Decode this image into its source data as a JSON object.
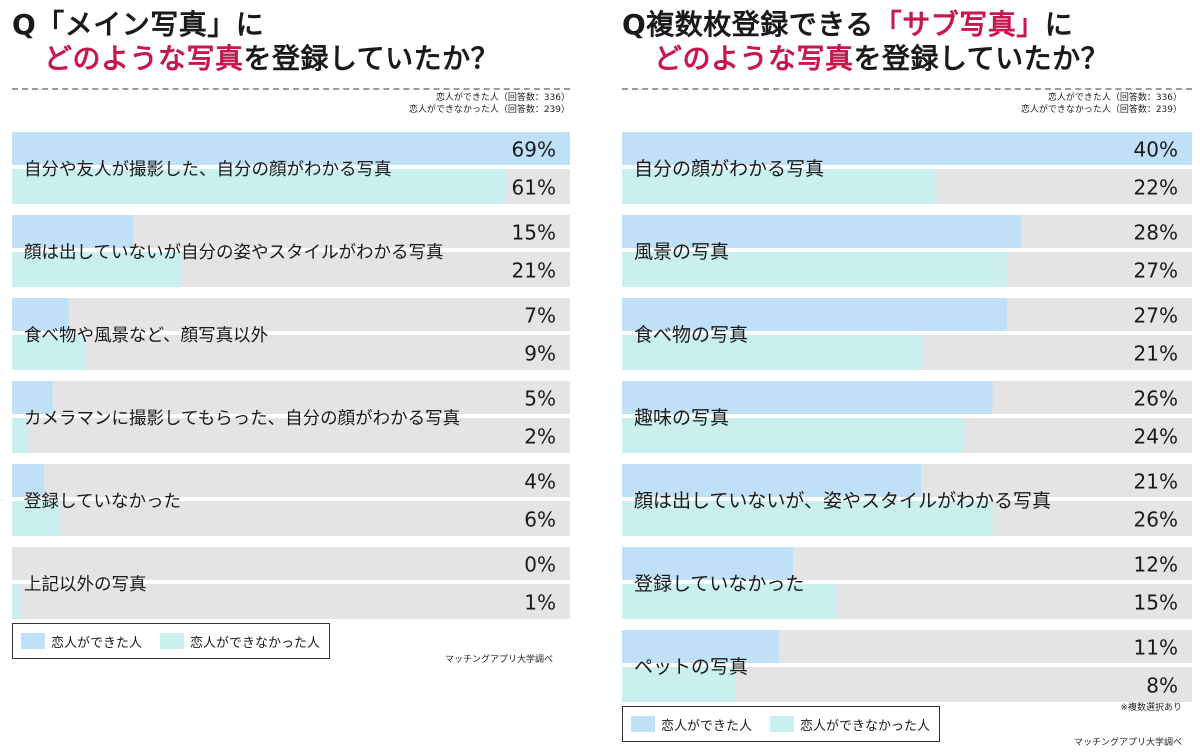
{
  "colors": {
    "series_a": "#bfe0f6",
    "series_b": "#c9efef",
    "track": "#e4e4e4",
    "highlight": "#c8174b"
  },
  "left": {
    "title_line1_prefix": "Q「メイン写真」に",
    "title_line2_highlight": "どのような写真",
    "title_line2_suffix": "を登録していたか？",
    "note_line1": "恋人ができた人（回答数：336）",
    "note_line2": "恋人ができなかった人（回答数：239）",
    "legend_a": "恋人ができた人",
    "legend_b": "恋人ができなかった人",
    "source": "マッチングアプリ大学調べ"
  },
  "right": {
    "title_line1_prefix": "Q複数枚登録できる",
    "title_line1_highlight": "「サブ写真」",
    "title_line1_suffix": "に",
    "title_line2_highlight": "どのような写真",
    "title_line2_suffix": "を登録していたか？",
    "note_line1": "恋人ができた人（回答数：336）",
    "note_line2": "恋人ができなかった人（回答数：239）",
    "legend_a": "恋人ができた人",
    "legend_b": "恋人ができなかった人",
    "multi_note": "※複数選択あり",
    "source": "マッチングアプリ大学調べ"
  },
  "chart_data": [
    {
      "type": "bar",
      "orientation": "horizontal",
      "title": "Q「メイン写真」にどのような写真を登録していたか？",
      "categories": [
        "自分や友人が撮影した、自分の顔がわかる写真",
        "顔は出していないが自分の姿やスタイルがわかる写真",
        "食べ物や風景など、顔写真以外",
        "カメラマンに撮影してもらった、自分の顔がわかる写真",
        "登録していなかった",
        "上記以外の写真"
      ],
      "series": [
        {
          "name": "恋人ができた人",
          "values": [
            69,
            15,
            7,
            5,
            4,
            0
          ]
        },
        {
          "name": "恋人ができなかった人",
          "values": [
            61,
            21,
            9,
            2,
            6,
            1
          ]
        }
      ],
      "value_labels": [
        [
          "69%",
          "61%"
        ],
        [
          "15%",
          "21%"
        ],
        [
          "7%",
          "9%"
        ],
        [
          "5%",
          "2%"
        ],
        [
          "4%",
          "6%"
        ],
        [
          "0%",
          "1%"
        ]
      ],
      "xlim": [
        0,
        69
      ],
      "legend_position": "bottom-left"
    },
    {
      "type": "bar",
      "orientation": "horizontal",
      "title": "Q複数枚登録できる「サブ写真」にどのような写真を登録していたか？",
      "categories": [
        "自分の顔がわかる写真",
        "風景の写真",
        "食べ物の写真",
        "趣味の写真",
        "顔は出していないが、姿やスタイルがわかる写真",
        "登録していなかった",
        "ペットの写真"
      ],
      "series": [
        {
          "name": "恋人ができた人",
          "values": [
            40,
            28,
            27,
            26,
            21,
            12,
            11
          ]
        },
        {
          "name": "恋人ができなかった人",
          "values": [
            22,
            27,
            21,
            24,
            26,
            15,
            8
          ]
        }
      ],
      "value_labels": [
        [
          "40%",
          "22%"
        ],
        [
          "28%",
          "27%"
        ],
        [
          "27%",
          "21%"
        ],
        [
          "26%",
          "24%"
        ],
        [
          "21%",
          "26%"
        ],
        [
          "12%",
          "15%"
        ],
        [
          "11%",
          "8%"
        ]
      ],
      "xlim": [
        0,
        40
      ],
      "legend_position": "bottom-left"
    }
  ]
}
